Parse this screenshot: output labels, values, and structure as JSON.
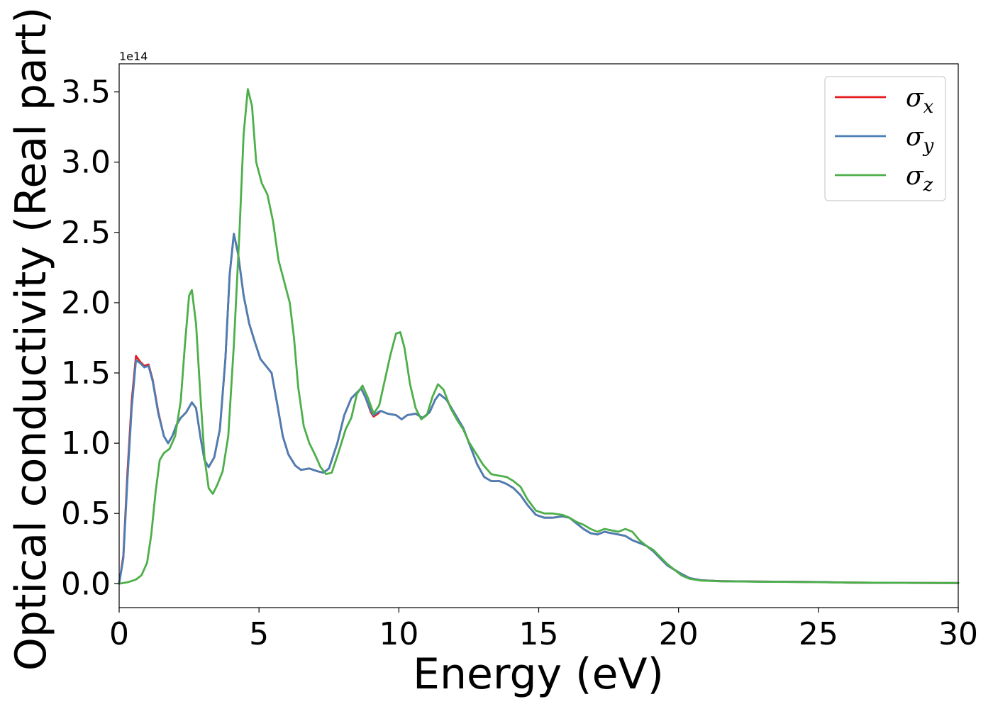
{
  "chart_data": {
    "type": "line",
    "xlabel": "Energy (eV)",
    "ylabel": "Optical conductivity (Real part)",
    "y_offset_label": "1e14",
    "xlim": [
      0,
      30
    ],
    "ylim": [
      -0.17,
      3.7
    ],
    "x_ticks": [
      0,
      5,
      10,
      15,
      20,
      25,
      30
    ],
    "x_tick_labels": [
      "0",
      "5",
      "10",
      "15",
      "20",
      "25",
      "30"
    ],
    "y_ticks": [
      0.0,
      0.5,
      1.0,
      1.5,
      2.0,
      2.5,
      3.0,
      3.5
    ],
    "y_tick_labels": [
      "0.0",
      "0.5",
      "1.0",
      "1.5",
      "2.0",
      "2.5",
      "3.0",
      "3.5"
    ],
    "grid": false,
    "legend_position": "top-right",
    "series": [
      {
        "name": "σx",
        "legend_base": "σ",
        "legend_sub": "x",
        "color": "#e41a1c",
        "points": [
          [
            0,
            0.0
          ],
          [
            0.15,
            0.2
          ],
          [
            0.3,
            0.8
          ],
          [
            0.45,
            1.3
          ],
          [
            0.6,
            1.62
          ],
          [
            0.75,
            1.58
          ],
          [
            0.9,
            1.55
          ],
          [
            1.05,
            1.56
          ],
          [
            1.2,
            1.45
          ],
          [
            1.4,
            1.22
          ],
          [
            1.6,
            1.05
          ],
          [
            1.75,
            1.0
          ],
          [
            1.9,
            1.05
          ],
          [
            2.05,
            1.13
          ],
          [
            2.2,
            1.18
          ],
          [
            2.4,
            1.22
          ],
          [
            2.6,
            1.29
          ],
          [
            2.75,
            1.25
          ],
          [
            2.9,
            1.05
          ],
          [
            3.05,
            0.88
          ],
          [
            3.2,
            0.83
          ],
          [
            3.4,
            0.9
          ],
          [
            3.6,
            1.1
          ],
          [
            3.8,
            1.6
          ],
          [
            3.95,
            2.2
          ],
          [
            4.1,
            2.49
          ],
          [
            4.25,
            2.35
          ],
          [
            4.45,
            2.05
          ],
          [
            4.65,
            1.85
          ],
          [
            4.85,
            1.72
          ],
          [
            5.05,
            1.6
          ],
          [
            5.25,
            1.55
          ],
          [
            5.45,
            1.5
          ],
          [
            5.65,
            1.28
          ],
          [
            5.85,
            1.05
          ],
          [
            6.05,
            0.92
          ],
          [
            6.3,
            0.84
          ],
          [
            6.5,
            0.81
          ],
          [
            6.8,
            0.82
          ],
          [
            7.1,
            0.8
          ],
          [
            7.3,
            0.79
          ],
          [
            7.5,
            0.82
          ],
          [
            7.8,
            1.0
          ],
          [
            8.05,
            1.2
          ],
          [
            8.3,
            1.32
          ],
          [
            8.5,
            1.36
          ],
          [
            8.65,
            1.39
          ],
          [
            8.8,
            1.33
          ],
          [
            9.0,
            1.22
          ],
          [
            9.1,
            1.19
          ],
          [
            9.25,
            1.21
          ],
          [
            9.35,
            1.23
          ],
          [
            9.6,
            1.21
          ],
          [
            9.9,
            1.2
          ],
          [
            10.1,
            1.17
          ],
          [
            10.3,
            1.2
          ],
          [
            10.6,
            1.21
          ],
          [
            10.85,
            1.18
          ],
          [
            11.1,
            1.22
          ],
          [
            11.3,
            1.31
          ],
          [
            11.45,
            1.35
          ],
          [
            11.7,
            1.31
          ],
          [
            12.0,
            1.21
          ],
          [
            12.3,
            1.11
          ],
          [
            12.55,
            0.98
          ],
          [
            12.8,
            0.85
          ],
          [
            13.05,
            0.76
          ],
          [
            13.3,
            0.73
          ],
          [
            13.6,
            0.73
          ],
          [
            13.85,
            0.71
          ],
          [
            14.1,
            0.68
          ],
          [
            14.35,
            0.63
          ],
          [
            14.6,
            0.56
          ],
          [
            14.9,
            0.49
          ],
          [
            15.2,
            0.47
          ],
          [
            15.5,
            0.47
          ],
          [
            15.85,
            0.48
          ],
          [
            16.1,
            0.47
          ],
          [
            16.35,
            0.43
          ],
          [
            16.6,
            0.39
          ],
          [
            16.85,
            0.36
          ],
          [
            17.1,
            0.35
          ],
          [
            17.35,
            0.37
          ],
          [
            17.6,
            0.36
          ],
          [
            17.85,
            0.35
          ],
          [
            18.1,
            0.34
          ],
          [
            18.35,
            0.31
          ],
          [
            18.6,
            0.29
          ],
          [
            18.85,
            0.27
          ],
          [
            19.1,
            0.23
          ],
          [
            19.35,
            0.18
          ],
          [
            19.6,
            0.13
          ],
          [
            19.85,
            0.1
          ],
          [
            20.1,
            0.07
          ],
          [
            20.4,
            0.04
          ],
          [
            20.8,
            0.025
          ],
          [
            21.5,
            0.018
          ],
          [
            23,
            0.015
          ],
          [
            25,
            0.012
          ],
          [
            26,
            0.008
          ],
          [
            28,
            0.006
          ],
          [
            30,
            0.005
          ]
        ]
      },
      {
        "name": "σy",
        "legend_base": "σ",
        "legend_sub": "y",
        "color": "#4a7fb5",
        "points": [
          [
            0,
            0.0
          ],
          [
            0.15,
            0.18
          ],
          [
            0.3,
            0.75
          ],
          [
            0.45,
            1.25
          ],
          [
            0.6,
            1.59
          ],
          [
            0.75,
            1.57
          ],
          [
            0.9,
            1.54
          ],
          [
            1.05,
            1.55
          ],
          [
            1.2,
            1.44
          ],
          [
            1.4,
            1.21
          ],
          [
            1.6,
            1.05
          ],
          [
            1.75,
            1.0
          ],
          [
            1.9,
            1.05
          ],
          [
            2.05,
            1.13
          ],
          [
            2.2,
            1.18
          ],
          [
            2.4,
            1.22
          ],
          [
            2.6,
            1.29
          ],
          [
            2.75,
            1.25
          ],
          [
            2.9,
            1.05
          ],
          [
            3.05,
            0.88
          ],
          [
            3.2,
            0.83
          ],
          [
            3.4,
            0.9
          ],
          [
            3.6,
            1.1
          ],
          [
            3.8,
            1.6
          ],
          [
            3.95,
            2.2
          ],
          [
            4.1,
            2.49
          ],
          [
            4.25,
            2.35
          ],
          [
            4.45,
            2.05
          ],
          [
            4.65,
            1.85
          ],
          [
            4.85,
            1.72
          ],
          [
            5.05,
            1.6
          ],
          [
            5.25,
            1.55
          ],
          [
            5.45,
            1.5
          ],
          [
            5.65,
            1.28
          ],
          [
            5.85,
            1.05
          ],
          [
            6.05,
            0.92
          ],
          [
            6.3,
            0.84
          ],
          [
            6.5,
            0.81
          ],
          [
            6.8,
            0.82
          ],
          [
            7.1,
            0.8
          ],
          [
            7.3,
            0.79
          ],
          [
            7.5,
            0.82
          ],
          [
            7.8,
            1.0
          ],
          [
            8.05,
            1.2
          ],
          [
            8.3,
            1.32
          ],
          [
            8.5,
            1.36
          ],
          [
            8.65,
            1.39
          ],
          [
            8.8,
            1.33
          ],
          [
            9.0,
            1.23
          ],
          [
            9.1,
            1.2
          ],
          [
            9.25,
            1.22
          ],
          [
            9.35,
            1.23
          ],
          [
            9.6,
            1.21
          ],
          [
            9.9,
            1.2
          ],
          [
            10.1,
            1.17
          ],
          [
            10.3,
            1.2
          ],
          [
            10.6,
            1.21
          ],
          [
            10.85,
            1.18
          ],
          [
            11.1,
            1.22
          ],
          [
            11.3,
            1.31
          ],
          [
            11.45,
            1.35
          ],
          [
            11.7,
            1.31
          ],
          [
            12.0,
            1.21
          ],
          [
            12.3,
            1.11
          ],
          [
            12.55,
            0.98
          ],
          [
            12.8,
            0.85
          ],
          [
            13.05,
            0.76
          ],
          [
            13.3,
            0.73
          ],
          [
            13.6,
            0.73
          ],
          [
            13.85,
            0.71
          ],
          [
            14.1,
            0.68
          ],
          [
            14.35,
            0.63
          ],
          [
            14.6,
            0.56
          ],
          [
            14.9,
            0.49
          ],
          [
            15.2,
            0.47
          ],
          [
            15.5,
            0.47
          ],
          [
            15.85,
            0.48
          ],
          [
            16.1,
            0.47
          ],
          [
            16.35,
            0.43
          ],
          [
            16.6,
            0.39
          ],
          [
            16.85,
            0.36
          ],
          [
            17.1,
            0.35
          ],
          [
            17.35,
            0.37
          ],
          [
            17.6,
            0.36
          ],
          [
            17.85,
            0.35
          ],
          [
            18.1,
            0.34
          ],
          [
            18.35,
            0.31
          ],
          [
            18.6,
            0.29
          ],
          [
            18.85,
            0.27
          ],
          [
            19.1,
            0.23
          ],
          [
            19.35,
            0.18
          ],
          [
            19.6,
            0.13
          ],
          [
            19.85,
            0.1
          ],
          [
            20.1,
            0.07
          ],
          [
            20.4,
            0.04
          ],
          [
            20.8,
            0.025
          ],
          [
            21.5,
            0.018
          ],
          [
            23,
            0.015
          ],
          [
            25,
            0.012
          ],
          [
            26,
            0.008
          ],
          [
            28,
            0.006
          ],
          [
            30,
            0.005
          ]
        ]
      },
      {
        "name": "σz",
        "legend_base": "σ",
        "legend_sub": "z",
        "color": "#4daf4a",
        "points": [
          [
            0,
            0.0
          ],
          [
            0.3,
            0.01
          ],
          [
            0.6,
            0.03
          ],
          [
            0.8,
            0.06
          ],
          [
            1.0,
            0.15
          ],
          [
            1.15,
            0.35
          ],
          [
            1.3,
            0.65
          ],
          [
            1.45,
            0.88
          ],
          [
            1.6,
            0.93
          ],
          [
            1.8,
            0.96
          ],
          [
            2.0,
            1.05
          ],
          [
            2.2,
            1.3
          ],
          [
            2.35,
            1.7
          ],
          [
            2.5,
            2.05
          ],
          [
            2.6,
            2.09
          ],
          [
            2.75,
            1.85
          ],
          [
            2.9,
            1.35
          ],
          [
            3.05,
            0.9
          ],
          [
            3.2,
            0.68
          ],
          [
            3.35,
            0.64
          ],
          [
            3.5,
            0.7
          ],
          [
            3.7,
            0.8
          ],
          [
            3.9,
            1.05
          ],
          [
            4.1,
            1.7
          ],
          [
            4.3,
            2.5
          ],
          [
            4.45,
            3.2
          ],
          [
            4.6,
            3.52
          ],
          [
            4.75,
            3.4
          ],
          [
            4.9,
            3.0
          ],
          [
            5.1,
            2.85
          ],
          [
            5.3,
            2.77
          ],
          [
            5.5,
            2.58
          ],
          [
            5.7,
            2.3
          ],
          [
            5.9,
            2.15
          ],
          [
            6.1,
            2.0
          ],
          [
            6.25,
            1.75
          ],
          [
            6.4,
            1.4
          ],
          [
            6.6,
            1.12
          ],
          [
            6.8,
            1.0
          ],
          [
            7.0,
            0.92
          ],
          [
            7.2,
            0.83
          ],
          [
            7.4,
            0.78
          ],
          [
            7.6,
            0.79
          ],
          [
            7.85,
            0.94
          ],
          [
            8.1,
            1.1
          ],
          [
            8.3,
            1.18
          ],
          [
            8.5,
            1.35
          ],
          [
            8.7,
            1.41
          ],
          [
            8.9,
            1.32
          ],
          [
            9.1,
            1.21
          ],
          [
            9.3,
            1.27
          ],
          [
            9.5,
            1.45
          ],
          [
            9.7,
            1.63
          ],
          [
            9.9,
            1.78
          ],
          [
            10.05,
            1.79
          ],
          [
            10.2,
            1.68
          ],
          [
            10.4,
            1.42
          ],
          [
            10.6,
            1.25
          ],
          [
            10.8,
            1.17
          ],
          [
            11.0,
            1.2
          ],
          [
            11.2,
            1.33
          ],
          [
            11.4,
            1.42
          ],
          [
            11.6,
            1.38
          ],
          [
            11.85,
            1.25
          ],
          [
            12.1,
            1.16
          ],
          [
            12.3,
            1.1
          ],
          [
            12.5,
            1.01
          ],
          [
            12.75,
            0.93
          ],
          [
            13.0,
            0.85
          ],
          [
            13.3,
            0.78
          ],
          [
            13.55,
            0.77
          ],
          [
            13.85,
            0.76
          ],
          [
            14.1,
            0.73
          ],
          [
            14.35,
            0.69
          ],
          [
            14.6,
            0.6
          ],
          [
            14.9,
            0.52
          ],
          [
            15.2,
            0.5
          ],
          [
            15.5,
            0.5
          ],
          [
            15.85,
            0.49
          ],
          [
            16.1,
            0.47
          ],
          [
            16.35,
            0.44
          ],
          [
            16.6,
            0.42
          ],
          [
            16.85,
            0.39
          ],
          [
            17.1,
            0.37
          ],
          [
            17.35,
            0.39
          ],
          [
            17.6,
            0.38
          ],
          [
            17.85,
            0.37
          ],
          [
            18.1,
            0.39
          ],
          [
            18.35,
            0.37
          ],
          [
            18.6,
            0.31
          ],
          [
            18.85,
            0.27
          ],
          [
            19.1,
            0.24
          ],
          [
            19.35,
            0.19
          ],
          [
            19.6,
            0.14
          ],
          [
            19.85,
            0.1
          ],
          [
            20.1,
            0.06
          ],
          [
            20.4,
            0.035
          ],
          [
            20.8,
            0.022
          ],
          [
            21.5,
            0.017
          ],
          [
            23,
            0.014
          ],
          [
            25,
            0.011
          ],
          [
            26,
            0.008
          ],
          [
            28,
            0.006
          ],
          [
            30,
            0.005
          ]
        ]
      }
    ]
  }
}
